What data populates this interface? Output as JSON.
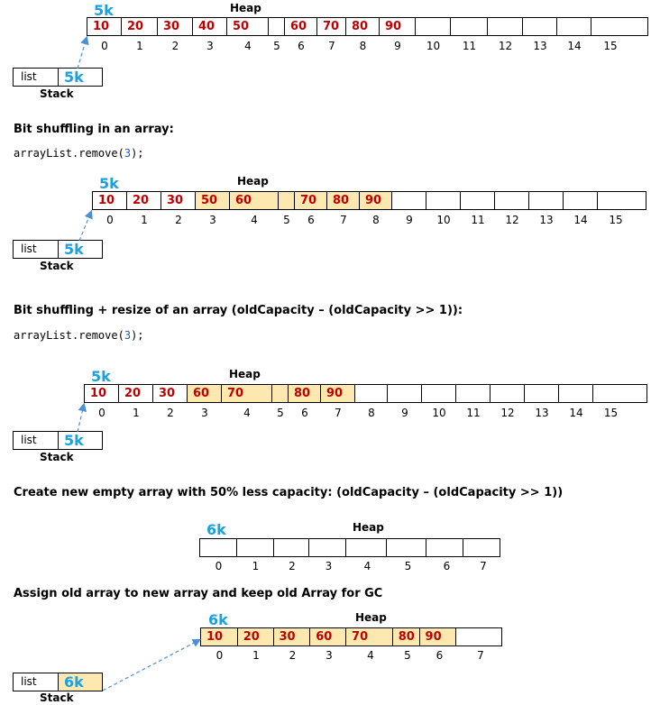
{
  "diagrams": [
    {
      "address": "5k",
      "heap_label": "Heap",
      "values": [
        "10",
        "20",
        "30",
        "40",
        "50",
        "",
        "60",
        "70",
        "80",
        "90",
        "",
        "",
        "",
        "",
        "",
        ""
      ],
      "highlight": [],
      "indices": [
        "0",
        "1",
        "2",
        "3",
        "4",
        "5",
        "6",
        "7",
        "8",
        "9",
        "10",
        "11",
        "12",
        "13",
        "14",
        "15"
      ],
      "stack": {
        "label": "list",
        "value": "5k",
        "caption": "Stack",
        "highlight": false
      }
    },
    {
      "heading": "Bit shuffling in an array:",
      "code": {
        "prefix": "arrayList.remove(",
        "arg": "3",
        "suffix": ");"
      },
      "address": "5k",
      "heap_label": "Heap",
      "values": [
        "10",
        "20",
        "30",
        "50",
        "60",
        "",
        "70",
        "80",
        "90",
        "",
        "",
        "",
        "",
        "",
        "",
        ""
      ],
      "highlight": [
        3,
        4,
        5,
        6,
        7,
        8
      ],
      "indices": [
        "0",
        "1",
        "2",
        "3",
        "4",
        "5",
        "6",
        "7",
        "8",
        "9",
        "10",
        "11",
        "12",
        "13",
        "14",
        "15"
      ],
      "stack": {
        "label": "list",
        "value": "5k",
        "caption": "Stack",
        "highlight": false
      }
    },
    {
      "heading": "Bit shuffling + resize of an array (oldCapacity – (oldCapacity >> 1)):",
      "code": {
        "prefix": "arrayList.remove(",
        "arg": "3",
        "suffix": ");"
      },
      "address": "5k",
      "heap_label": "Heap",
      "values": [
        "10",
        "20",
        "30",
        "60",
        "70",
        "",
        "80",
        "90",
        "",
        "",
        "",
        "",
        "",
        "",
        "",
        ""
      ],
      "highlight": [
        3,
        4,
        5,
        6,
        7
      ],
      "indices": [
        "0",
        "1",
        "2",
        "3",
        "4",
        "5",
        "6",
        "7",
        "8",
        "9",
        "10",
        "11",
        "12",
        "13",
        "14",
        "15"
      ],
      "stack": {
        "label": "list",
        "value": "5k",
        "caption": "Stack",
        "highlight": false
      }
    },
    {
      "heading": "Create new empty array with 50% less capacity: (oldCapacity – (oldCapacity >> 1))",
      "address": "6k",
      "heap_label": "Heap",
      "values": [
        "",
        "",
        "",
        "",
        "",
        "",
        "",
        ""
      ],
      "highlight": [],
      "indices": [
        "0",
        "1",
        "2",
        "3",
        "4",
        "5",
        "6",
        "7"
      ]
    },
    {
      "heading": "Assign old array to new array and keep old Array for GC",
      "address": "6k",
      "heap_label": "Heap",
      "values": [
        "10",
        "20",
        "30",
        "60",
        "70",
        "80",
        "90",
        ""
      ],
      "highlight": [
        0,
        1,
        2,
        3,
        4,
        5,
        6
      ],
      "indices": [
        "0",
        "1",
        "2",
        "3",
        "4",
        "5",
        "6",
        "7"
      ],
      "stack": {
        "label": "list",
        "value": "6k",
        "caption": "Stack",
        "highlight": true
      }
    }
  ]
}
